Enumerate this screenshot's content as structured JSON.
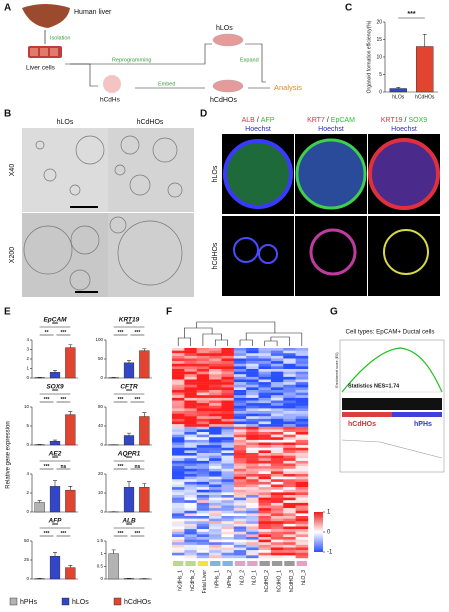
{
  "panels": {
    "A": {
      "letter": "A",
      "human_liver": "Human liver",
      "isolation": "Isolation",
      "liver_cells": "Liver cells",
      "reprogramming": "Reprogramming",
      "hcdhs": "hCdHs",
      "embed": "Embed",
      "expand": "Expand",
      "hlos": "hLOs",
      "hcdhos": "hCdHOs",
      "analysis": "Analysis"
    },
    "B": {
      "letter": "B",
      "columns": [
        "hLOs",
        "hCdHOs"
      ],
      "rows": [
        "X40",
        "X200"
      ]
    },
    "C": {
      "letter": "C"
    },
    "D": {
      "letter": "D",
      "stains": [
        {
          "first": "ALB",
          "second": "AFP"
        },
        {
          "first": "KRT7",
          "second": "EpCAM"
        },
        {
          "first": "KRT19",
          "second": "SOX9"
        }
      ],
      "slash": "/",
      "counterstain": "Hoechst",
      "rows": [
        "hLOs",
        "hCdHOs"
      ]
    },
    "E": {
      "letter": "E",
      "ylabel": "Relative gene expression",
      "legend": [
        {
          "name": "hPHs",
          "color": "#b3b3b3"
        },
        {
          "name": "hLOs",
          "color": "#3346c8"
        },
        {
          "name": "hCdHOs",
          "color": "#e2452f"
        }
      ]
    },
    "F": {
      "letter": "F",
      "samples": [
        "hCdHs_1",
        "hCdHs_2",
        "Fetal Liver",
        "hPHs_1",
        "hPHs_2",
        "hLO_2",
        "hLO_1",
        "hCdHO_2",
        "hCdHO_1",
        "hCdHO_3",
        "hLO_3"
      ],
      "colorbar_ticks": [
        1,
        0,
        -1
      ]
    },
    "G": {
      "letter": "G",
      "title": "Cell types: EpCAM+ Ductal cells",
      "stat": "Statistics NES=1.74",
      "left": "hCdHOs",
      "right": "hPHs",
      "ylabel": "Enrichment score (ES)"
    }
  },
  "chart_data": [
    {
      "type": "bar",
      "annotation": "***",
      "ylabel": "Organoid formation efficiency(%)",
      "categories": [
        "hLOs",
        "hCdHOs"
      ],
      "values": [
        1,
        13
      ],
      "errors": [
        0.3,
        3.5
      ],
      "colors": [
        "#3346c8",
        "#e2452f"
      ],
      "ylim": [
        0,
        20
      ],
      "yticks": [
        0,
        5,
        10,
        15,
        20
      ]
    },
    {
      "type": "bar",
      "title": "EpCAM",
      "values": [
        0.05,
        0.6,
        3.2
      ],
      "errors": [
        0.02,
        0.2,
        0.3
      ],
      "colors": [
        "#b3b3b3",
        "#3346c8",
        "#e2452f"
      ],
      "ylim": [
        0,
        4
      ],
      "yticks": [
        0,
        1,
        2,
        3,
        4
      ],
      "significance": [
        "***",
        "**",
        "***"
      ]
    },
    {
      "type": "bar",
      "title": "KRT19",
      "values": [
        1,
        40,
        72
      ],
      "errors": [
        0.5,
        6,
        5
      ],
      "colors": [
        "#b3b3b3",
        "#3346c8",
        "#e2452f"
      ],
      "ylim": [
        0,
        100
      ],
      "yticks": [
        0,
        50,
        100
      ],
      "significance": [
        "***",
        "***",
        "***"
      ]
    },
    {
      "type": "bar",
      "title": "SOX9",
      "values": [
        0.1,
        1,
        8
      ],
      "errors": [
        0.05,
        0.3,
        0.8
      ],
      "colors": [
        "#b3b3b3",
        "#3346c8",
        "#e2452f"
      ],
      "ylim": [
        0,
        10
      ],
      "yticks": [
        0,
        5,
        10
      ],
      "significance": [
        "***",
        "***",
        "***"
      ]
    },
    {
      "type": "bar",
      "title": "CFTR",
      "values": [
        0.5,
        20,
        60
      ],
      "errors": [
        0.2,
        5,
        8
      ],
      "colors": [
        "#b3b3b3",
        "#3346c8",
        "#e2452f"
      ],
      "ylim": [
        0,
        80
      ],
      "yticks": [
        0,
        40,
        80
      ],
      "significance": [
        "***",
        "***",
        "***"
      ]
    },
    {
      "type": "bar",
      "title": "AE2",
      "values": [
        1,
        2.7,
        2.3
      ],
      "errors": [
        0.2,
        0.6,
        0.4
      ],
      "colors": [
        "#b3b3b3",
        "#3346c8",
        "#e2452f"
      ],
      "ylim": [
        0,
        4
      ],
      "yticks": [
        0,
        2,
        4
      ],
      "significance": [
        "***",
        "***",
        "ns"
      ]
    },
    {
      "type": "bar",
      "title": "AQPR1",
      "values": [
        0.1,
        13,
        13
      ],
      "errors": [
        0.05,
        3,
        2
      ],
      "colors": [
        "#b3b3b3",
        "#3346c8",
        "#e2452f"
      ],
      "ylim": [
        0,
        20
      ],
      "yticks": [
        0,
        10,
        20
      ],
      "significance": [
        "***",
        "***",
        "ns"
      ]
    },
    {
      "type": "bar",
      "title": "AFP",
      "values": [
        0.5,
        30,
        15
      ],
      "errors": [
        0.2,
        5,
        3
      ],
      "colors": [
        "#b3b3b3",
        "#3346c8",
        "#e2452f"
      ],
      "ylim": [
        0,
        50
      ],
      "yticks": [
        0,
        25,
        50
      ],
      "significance": [
        "***",
        "***",
        "***"
      ]
    },
    {
      "type": "bar",
      "title": "ALB",
      "values": [
        1,
        0.02,
        0.01
      ],
      "errors": [
        0.15,
        0.01,
        0.01
      ],
      "colors": [
        "#b3b3b3",
        "#3346c8",
        "#e2452f"
      ],
      "ylim": [
        0,
        1.5
      ],
      "yticks": [
        0,
        0.5,
        1,
        1.5
      ],
      "significance": [
        "***",
        "***",
        "***"
      ]
    }
  ]
}
